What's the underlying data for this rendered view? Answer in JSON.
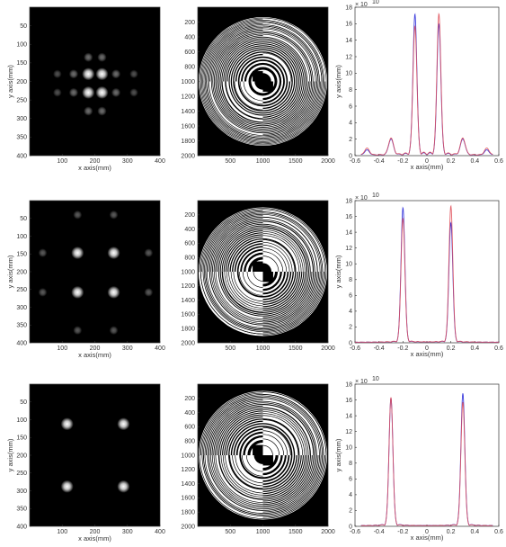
{
  "colors": {
    "curve_blue": "#2b2bd9",
    "curve_red": "#e0505a",
    "panel_black": "#000000",
    "axis": "#333333"
  },
  "chart_data": [
    {
      "type": "heatmap",
      "row": 1,
      "col": 1,
      "xlabel": "x axis(mm)",
      "ylabel": "y axis(mm)",
      "xlim": [
        0,
        400
      ],
      "ylim": [
        400,
        0
      ],
      "xticks": [
        "100",
        "200",
        "300",
        "400"
      ],
      "yticks": [
        "50",
        "100",
        "150",
        "200",
        "250",
        "300",
        "350",
        "400"
      ],
      "spots": [
        {
          "x": 180,
          "y": 180,
          "i": 1.0
        },
        {
          "x": 222,
          "y": 180,
          "i": 1.0
        },
        {
          "x": 180,
          "y": 230,
          "i": 1.0
        },
        {
          "x": 222,
          "y": 230,
          "i": 1.0
        },
        {
          "x": 180,
          "y": 135,
          "i": 0.25
        },
        {
          "x": 222,
          "y": 135,
          "i": 0.25
        },
        {
          "x": 180,
          "y": 280,
          "i": 0.25
        },
        {
          "x": 222,
          "y": 280,
          "i": 0.25
        },
        {
          "x": 135,
          "y": 180,
          "i": 0.25
        },
        {
          "x": 265,
          "y": 180,
          "i": 0.25
        },
        {
          "x": 135,
          "y": 230,
          "i": 0.25
        },
        {
          "x": 265,
          "y": 230,
          "i": 0.25
        },
        {
          "x": 85,
          "y": 180,
          "i": 0.1
        },
        {
          "x": 320,
          "y": 180,
          "i": 0.1
        },
        {
          "x": 85,
          "y": 230,
          "i": 0.1
        },
        {
          "x": 320,
          "y": 230,
          "i": 0.1
        }
      ]
    },
    {
      "type": "heatmap",
      "row": 1,
      "col": 2,
      "xlabel": "",
      "ylabel": "",
      "xlim": [
        0,
        2000
      ],
      "ylim": [
        2000,
        0
      ],
      "xticks": [
        "500",
        "1000",
        "1500",
        "2000"
      ],
      "yticks": [
        "200",
        "400",
        "600",
        "800",
        "1000",
        "1200",
        "1400",
        "1600",
        "1800",
        "2000"
      ],
      "pattern": {
        "rings": 30,
        "distortion": 0.3
      }
    },
    {
      "type": "line",
      "row": 1,
      "col": 3,
      "xlabel": "x axis(mm)",
      "ylabel": "y axis(mm)",
      "ylabel_exponent": "× 10",
      "ylabel_exponent_power": "10",
      "xlim": [
        -0.6,
        0.6
      ],
      "ylim": [
        0,
        18
      ],
      "xticks": [
        "-0.6",
        "-0.4",
        "-0.2",
        "0",
        "0.2",
        "0.4",
        "0.6"
      ],
      "yticks": [
        "0",
        "2",
        "4",
        "6",
        "8",
        "10",
        "12",
        "14",
        "16",
        "18"
      ],
      "x_range": [
        -0.55,
        0.55
      ],
      "series": [
        {
          "color": "#2b2bd9",
          "peaks": [
            {
              "x": -0.1,
              "y": 16.2,
              "w": 0.016
            },
            {
              "x": 0.1,
              "y": 15.0,
              "w": 0.016
            },
            {
              "x": -0.3,
              "y": 1.9,
              "w": 0.02
            },
            {
              "x": 0.3,
              "y": 1.9,
              "w": 0.02
            },
            {
              "x": -0.5,
              "y": 0.6,
              "w": 0.02
            },
            {
              "x": 0.5,
              "y": 0.6,
              "w": 0.02
            }
          ],
          "ripple": 0.4
        },
        {
          "color": "#e0505a",
          "peaks": [
            {
              "x": -0.1,
              "y": 14.5,
              "w": 0.016
            },
            {
              "x": 0.1,
              "y": 16.0,
              "w": 0.016
            },
            {
              "x": -0.3,
              "y": 2.0,
              "w": 0.02
            },
            {
              "x": 0.3,
              "y": 2.0,
              "w": 0.02
            },
            {
              "x": -0.5,
              "y": 0.8,
              "w": 0.02
            },
            {
              "x": 0.5,
              "y": 0.8,
              "w": 0.02
            }
          ],
          "ripple": 0.5
        }
      ]
    },
    {
      "type": "heatmap",
      "row": 2,
      "col": 1,
      "xlabel": "x axis(mm)",
      "ylabel": "y axis(mm)",
      "xlim": [
        0,
        400
      ],
      "ylim": [
        400,
        0
      ],
      "xticks": [
        "100",
        "200",
        "300",
        "400"
      ],
      "yticks": [
        "50",
        "100",
        "150",
        "200",
        "250",
        "300",
        "350",
        "400"
      ],
      "spots": [
        {
          "x": 147,
          "y": 147,
          "i": 1.0
        },
        {
          "x": 258,
          "y": 147,
          "i": 1.0
        },
        {
          "x": 147,
          "y": 258,
          "i": 1.0
        },
        {
          "x": 258,
          "y": 258,
          "i": 1.0
        },
        {
          "x": 147,
          "y": 40,
          "i": 0.15
        },
        {
          "x": 258,
          "y": 40,
          "i": 0.15
        },
        {
          "x": 147,
          "y": 365,
          "i": 0.15
        },
        {
          "x": 258,
          "y": 365,
          "i": 0.15
        },
        {
          "x": 40,
          "y": 147,
          "i": 0.15
        },
        {
          "x": 365,
          "y": 147,
          "i": 0.15
        },
        {
          "x": 40,
          "y": 258,
          "i": 0.15
        },
        {
          "x": 365,
          "y": 258,
          "i": 0.15
        }
      ]
    },
    {
      "type": "heatmap",
      "row": 2,
      "col": 2,
      "xlabel": "",
      "ylabel": "",
      "xlim": [
        0,
        2000
      ],
      "ylim": [
        2000,
        0
      ],
      "xticks": [
        "500",
        "1000",
        "1500",
        "2000"
      ],
      "yticks": [
        "200",
        "400",
        "600",
        "800",
        "1000",
        "1200",
        "1400",
        "1600",
        "1800",
        "2000"
      ],
      "pattern": {
        "rings": 28,
        "distortion": 0.5
      }
    },
    {
      "type": "line",
      "row": 2,
      "col": 3,
      "xlabel": "x axis(mm)",
      "ylabel": "y axis(mm)",
      "ylabel_exponent": "× 10",
      "ylabel_exponent_power": "10",
      "xlim": [
        -0.6,
        0.6
      ],
      "ylim": [
        0,
        18
      ],
      "xticks": [
        "-0.6",
        "-0.4",
        "-0.2",
        "0",
        "0.2",
        "0.4",
        "0.6"
      ],
      "yticks": [
        "0",
        "2",
        "4",
        "6",
        "8",
        "10",
        "12",
        "14",
        "16",
        "18"
      ],
      "x_range": [
        -0.6,
        0.6
      ],
      "series": [
        {
          "color": "#2b2bd9",
          "peaks": [
            {
              "x": -0.2,
              "y": 16.5,
              "w": 0.016
            },
            {
              "x": 0.2,
              "y": 14.6,
              "w": 0.016
            }
          ],
          "ripple": 0.25
        },
        {
          "color": "#e0505a",
          "peaks": [
            {
              "x": -0.2,
              "y": 15.0,
              "w": 0.016
            },
            {
              "x": 0.2,
              "y": 16.6,
              "w": 0.016
            }
          ],
          "ripple": 0.3
        }
      ]
    },
    {
      "type": "heatmap",
      "row": 3,
      "col": 1,
      "xlabel": "x axis(mm)",
      "ylabel": "y axis(mm)",
      "xlim": [
        0,
        400
      ],
      "ylim": [
        400,
        0
      ],
      "xticks": [
        "100",
        "200",
        "300",
        "400"
      ],
      "yticks": [
        "50",
        "100",
        "150",
        "200",
        "250",
        "300",
        "350",
        "400"
      ],
      "spots": [
        {
          "x": 115,
          "y": 112,
          "i": 1.0
        },
        {
          "x": 288,
          "y": 112,
          "i": 1.0
        },
        {
          "x": 115,
          "y": 288,
          "i": 1.0
        },
        {
          "x": 288,
          "y": 288,
          "i": 1.0
        }
      ]
    },
    {
      "type": "heatmap",
      "row": 3,
      "col": 2,
      "xlabel": "",
      "ylabel": "",
      "xlim": [
        0,
        2000
      ],
      "ylim": [
        2000,
        0
      ],
      "xticks": [
        "500",
        "1000",
        "1500",
        "2000"
      ],
      "yticks": [
        "200",
        "400",
        "600",
        "800",
        "1000",
        "1200",
        "1400",
        "1600",
        "1800",
        "2000"
      ],
      "pattern": {
        "rings": 26,
        "distortion": 0.8
      }
    },
    {
      "type": "line",
      "row": 3,
      "col": 3,
      "xlabel": "x axis(mm)",
      "ylabel": "y axis(mm)",
      "ylabel_exponent": "× 10",
      "ylabel_exponent_power": "10",
      "xlim": [
        -0.6,
        0.6
      ],
      "ylim": [
        0,
        18
      ],
      "xticks": [
        "-0.6",
        "-0.4",
        "-0.2",
        "0",
        "0.2",
        "0.4",
        "0.6"
      ],
      "yticks": [
        "0",
        "2",
        "4",
        "6",
        "8",
        "10",
        "12",
        "14",
        "16",
        "18"
      ],
      "x_range": [
        -0.55,
        0.55
      ],
      "series": [
        {
          "color": "#2b2bd9",
          "peaks": [
            {
              "x": -0.3,
              "y": 15.4,
              "w": 0.016
            },
            {
              "x": 0.3,
              "y": 16.0,
              "w": 0.016
            }
          ],
          "ripple": 0.35
        },
        {
          "color": "#e0505a",
          "peaks": [
            {
              "x": -0.3,
              "y": 15.6,
              "w": 0.016
            },
            {
              "x": 0.3,
              "y": 15.0,
              "w": 0.016
            }
          ],
          "ripple": 0.3
        }
      ]
    }
  ]
}
